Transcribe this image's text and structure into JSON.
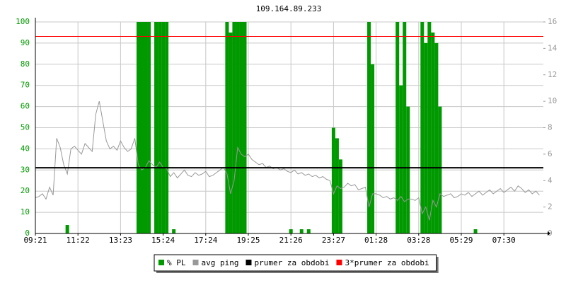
{
  "chart_data": {
    "type": "bar-line",
    "title": "109.164.89.233",
    "categories": [
      "09:21",
      null,
      null,
      null,
      null,
      null,
      null,
      null,
      null,
      null,
      null,
      null,
      "11:22",
      null,
      null,
      null,
      null,
      null,
      null,
      null,
      null,
      null,
      null,
      null,
      "13:23",
      null,
      null,
      null,
      null,
      null,
      null,
      null,
      null,
      null,
      null,
      null,
      "15:24",
      null,
      null,
      null,
      null,
      null,
      null,
      null,
      null,
      null,
      null,
      null,
      "17:24",
      null,
      null,
      null,
      null,
      null,
      null,
      null,
      null,
      null,
      null,
      null,
      "19:25",
      null,
      null,
      null,
      null,
      null,
      null,
      null,
      null,
      null,
      null,
      null,
      "21:26",
      null,
      null,
      null,
      null,
      null,
      null,
      null,
      null,
      null,
      null,
      null,
      "23:27",
      null,
      null,
      null,
      null,
      null,
      null,
      null,
      null,
      null,
      null,
      null,
      "01:28",
      null,
      null,
      null,
      null,
      null,
      null,
      null,
      null,
      null,
      null,
      null,
      "03:28",
      null,
      null,
      null,
      null,
      null,
      null,
      null,
      null,
      null,
      null,
      null,
      "05:29",
      null,
      null,
      null,
      null,
      null,
      null,
      null,
      null,
      null,
      null,
      null,
      "07:30",
      null,
      null,
      null,
      null,
      null,
      null,
      null,
      null,
      null,
      null
    ],
    "series": [
      {
        "name": "% PL",
        "type": "bar",
        "axis": "y",
        "color": "#009900",
        "values": [
          0,
          0,
          0,
          0,
          0,
          0,
          0,
          0,
          0,
          4,
          0,
          0,
          0,
          0,
          0,
          0,
          0,
          0,
          0,
          0,
          0,
          0,
          0,
          0,
          0,
          0,
          0,
          0,
          0,
          100,
          100,
          100,
          100,
          0,
          100,
          100,
          100,
          100,
          0,
          2,
          0,
          0,
          0,
          0,
          0,
          0,
          0,
          0,
          0,
          0,
          0,
          0,
          0,
          0,
          100,
          95,
          100,
          100,
          100,
          100,
          0,
          0,
          0,
          0,
          0,
          0,
          0,
          0,
          0,
          0,
          0,
          0,
          2,
          0,
          0,
          2,
          0,
          2,
          0,
          0,
          0,
          0,
          0,
          0,
          50,
          45,
          35,
          0,
          0,
          0,
          0,
          0,
          0,
          0,
          100,
          80,
          0,
          0,
          0,
          0,
          0,
          0,
          100,
          70,
          100,
          60,
          0,
          0,
          0,
          100,
          90,
          100,
          95,
          90,
          60,
          0,
          0,
          0,
          0,
          0,
          0,
          0,
          0,
          0,
          2,
          0,
          0,
          0,
          0,
          0,
          0,
          0,
          0,
          0,
          0,
          0,
          0,
          0,
          0,
          0,
          0,
          0,
          0
        ]
      },
      {
        "name": "avg ping",
        "type": "line",
        "axis": "y2",
        "color": "#999999",
        "values": [
          2.7,
          2.8,
          3.0,
          2.6,
          3.5,
          2.9,
          7.2,
          6.5,
          5.2,
          4.5,
          6.4,
          6.6,
          6.3,
          6.0,
          6.8,
          6.5,
          6.2,
          9.0,
          10.0,
          8.5,
          7.0,
          6.4,
          6.6,
          6.3,
          7.0,
          6.5,
          6.2,
          6.4,
          7.2,
          5.2,
          4.8,
          5.0,
          5.5,
          5.2,
          5.0,
          5.4,
          5.0,
          4.9,
          4.3,
          4.6,
          4.2,
          4.5,
          4.8,
          4.4,
          4.3,
          4.6,
          4.4,
          4.5,
          4.7,
          4.3,
          4.4,
          4.6,
          4.8,
          5.0,
          4.5,
          3.0,
          4.0,
          6.5,
          6.0,
          5.8,
          6.0,
          5.6,
          5.4,
          5.2,
          5.3,
          5.0,
          5.1,
          4.9,
          5.0,
          4.8,
          4.9,
          4.7,
          4.6,
          4.8,
          4.5,
          4.6,
          4.4,
          4.5,
          4.3,
          4.4,
          4.2,
          4.3,
          4.1,
          4.0,
          3.0,
          3.6,
          3.4,
          3.5,
          3.8,
          3.6,
          3.7,
          3.3,
          3.4,
          3.5,
          2.0,
          3.0,
          3.0,
          2.9,
          2.7,
          2.8,
          2.6,
          2.7,
          2.5,
          2.8,
          2.4,
          2.6,
          2.6,
          2.5,
          2.7,
          1.5,
          2.0,
          1.0,
          2.5,
          2.0,
          3.0,
          2.8,
          2.9,
          3.0,
          2.7,
          2.8,
          3.0,
          2.9,
          3.1,
          2.8,
          3.0,
          3.2,
          2.9,
          3.1,
          3.3,
          3.0,
          3.2,
          3.4,
          3.1,
          3.3,
          3.5,
          3.2,
          3.6,
          3.4,
          3.1,
          3.3,
          3.0,
          3.2,
          2.9
        ]
      },
      {
        "name": "prumer za obdobi",
        "type": "hline",
        "axis": "y2",
        "color": "#000000",
        "value": 4.97
      },
      {
        "name": "3*prumer za obdobi",
        "type": "hline",
        "axis": "y2",
        "color": "#ff0000",
        "value": 14.9
      }
    ],
    "ylim": [
      0,
      100
    ],
    "yticks": [
      0,
      10,
      20,
      30,
      40,
      50,
      60,
      70,
      80,
      90,
      100
    ],
    "y2lim": [
      0,
      16
    ],
    "y2ticks": [
      0,
      2,
      4,
      6,
      8,
      10,
      12,
      14,
      16
    ],
    "grid": true,
    "legend": "bottom"
  }
}
